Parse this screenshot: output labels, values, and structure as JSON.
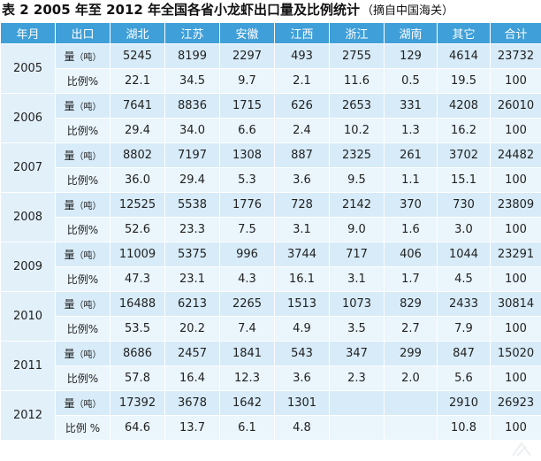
{
  "title": {
    "main": "表 2 2005 年至 2012 年全国各省小龙虾出口量及比例统计",
    "source": "（摘自中国海关）"
  },
  "header": [
    "年月",
    "出口",
    "湖北",
    "江苏",
    "安徽",
    "江西",
    "浙江",
    "湖南",
    "其它",
    "合计"
  ],
  "labels": {
    "qty_prefix": "量",
    "qty_unit": "（吨）",
    "ratio": "比例%",
    "ratio_2012": "比例 %"
  },
  "rows": [
    {
      "year": "2005",
      "qty": [
        "5245",
        "8199",
        "2297",
        "493",
        "2755",
        "129",
        "4614",
        "23732"
      ],
      "ratio": [
        "22.1",
        "34.5",
        "9.7",
        "2.1",
        "11.6",
        "0.5",
        "19.5",
        "100"
      ]
    },
    {
      "year": "2006",
      "qty": [
        "7641",
        "8836",
        "1715",
        "626",
        "2653",
        "331",
        "4208",
        "26010"
      ],
      "ratio": [
        "29.4",
        "34.0",
        "6.6",
        "2.4",
        "10.2",
        "1.3",
        "16.2",
        "100"
      ]
    },
    {
      "year": "2007",
      "qty": [
        "8802",
        "7197",
        "1308",
        "887",
        "2325",
        "261",
        "3702",
        "24482"
      ],
      "ratio": [
        "36.0",
        "29.4",
        "5.3",
        "3.6",
        "9.5",
        "1.1",
        "15.1",
        "100"
      ]
    },
    {
      "year": "2008",
      "qty": [
        "12525",
        "5538",
        "1776",
        "728",
        "2142",
        "370",
        "730",
        "23809"
      ],
      "ratio": [
        "52.6",
        "23.3",
        "7.5",
        "3.1",
        "9.0",
        "1.6",
        "3.0",
        "100"
      ]
    },
    {
      "year": "2009",
      "qty": [
        "11009",
        "5375",
        "996",
        "3744",
        "717",
        "406",
        "1044",
        "23291"
      ],
      "ratio": [
        "47.3",
        "23.1",
        "4.3",
        "16.1",
        "3.1",
        "1.7",
        "4.5",
        "100"
      ]
    },
    {
      "year": "2010",
      "qty": [
        "16488",
        "6213",
        "2265",
        "1513",
        "1073",
        "829",
        "2433",
        "30814"
      ],
      "ratio": [
        "53.5",
        "20.2",
        "7.4",
        "4.9",
        "3.5",
        "2.7",
        "7.9",
        "100"
      ]
    },
    {
      "year": "2011",
      "qty": [
        "8686",
        "2457",
        "1841",
        "543",
        "347",
        "299",
        "847",
        "15020"
      ],
      "ratio": [
        "57.8",
        "16.4",
        "12.3",
        "3.6",
        "2.3",
        "2.0",
        "5.6",
        "100"
      ]
    },
    {
      "year": "2012",
      "qty": [
        "17392",
        "3678",
        "1642",
        "1301",
        "",
        "",
        "2910",
        "26923"
      ],
      "ratio": [
        "64.6",
        "13.7",
        "6.1",
        "4.8",
        "",
        "",
        "10.8",
        "100"
      ]
    }
  ],
  "colors": {
    "header_bg": "#3f9fd8",
    "row_qty_bg": "#d7ebf8",
    "row_ratio_bg": "#eaf5fc"
  }
}
